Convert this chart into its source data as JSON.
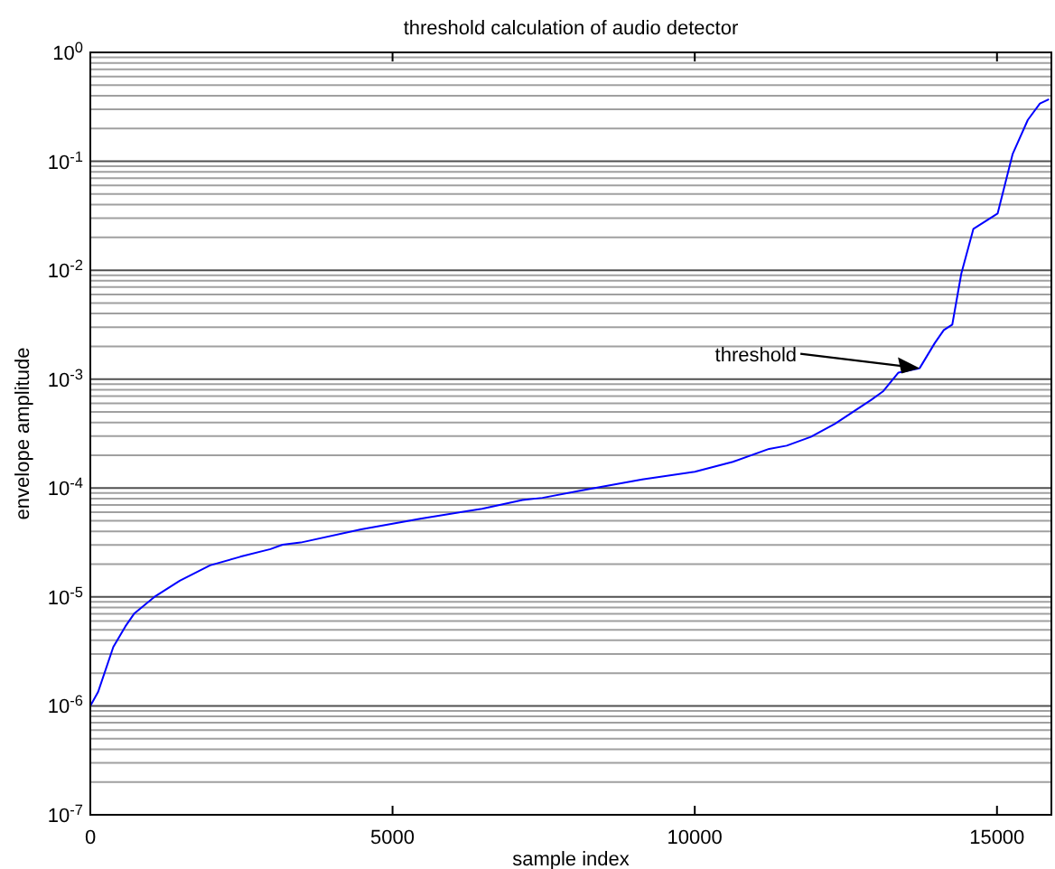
{
  "chart_data": {
    "type": "line",
    "title": "threshold calculation of audio detector",
    "xlabel": "sample index",
    "ylabel": "envelope amplitude",
    "log": "y",
    "grid": true,
    "xlim": [
      0,
      15900
    ],
    "xticks": [
      0,
      5000,
      10000,
      15000
    ],
    "ylim": [
      1e-07,
      1
    ],
    "yticks": [
      {
        "value": 1e-07,
        "label": "10$^{-7}$"
      },
      {
        "value": 1e-06,
        "label": "10$^{-6}$"
      },
      {
        "value": 1e-05,
        "label": "10$^{-5}$"
      },
      {
        "value": 0.0001,
        "label": "10$^{-4}$"
      },
      {
        "value": 0.001,
        "label": "10$^{-3}$"
      },
      {
        "value": 0.01,
        "label": "10$^{-2}$"
      },
      {
        "value": 0.1,
        "label": "10$^{-1}$"
      },
      {
        "value": 1,
        "label": "10$^{0}$"
      }
    ],
    "annotations": [
      {
        "text": "threshold",
        "x": 13720,
        "y": 0.00126
      }
    ],
    "series": [
      {
        "color": "#0000ff",
        "x": [
          0,
          130,
          380,
          580,
          730,
          1080,
          1480,
          1980,
          2480,
          2980,
          3180,
          3480,
          4480,
          5480,
          6480,
          7150,
          7480,
          8140,
          9130,
          10000,
          10630,
          11230,
          11520,
          11920,
          12320,
          12920,
          13120,
          13370,
          13720,
          13970,
          14120,
          14260,
          14410,
          14610,
          15010,
          15260,
          15510,
          15710,
          15860
        ],
        "values": [
          1e-06,
          1.35e-06,
          3.47e-06,
          5.37e-06,
          7.08e-06,
          1.02e-05,
          1.41e-05,
          1.95e-05,
          2.34e-05,
          2.75e-05,
          3.02e-05,
          3.16e-05,
          4.17e-05,
          5.25e-05,
          6.46e-05,
          7.76e-05,
          8.13e-05,
          9.55e-05,
          0.00012,
          0.000141,
          0.000174,
          0.000229,
          0.000245,
          0.000295,
          0.000389,
          0.000646,
          0.000776,
          0.00115,
          0.00126,
          0.00214,
          0.00282,
          0.00316,
          0.00933,
          0.024,
          0.0331,
          0.117,
          0.24,
          0.339,
          0.372
        ]
      }
    ]
  }
}
